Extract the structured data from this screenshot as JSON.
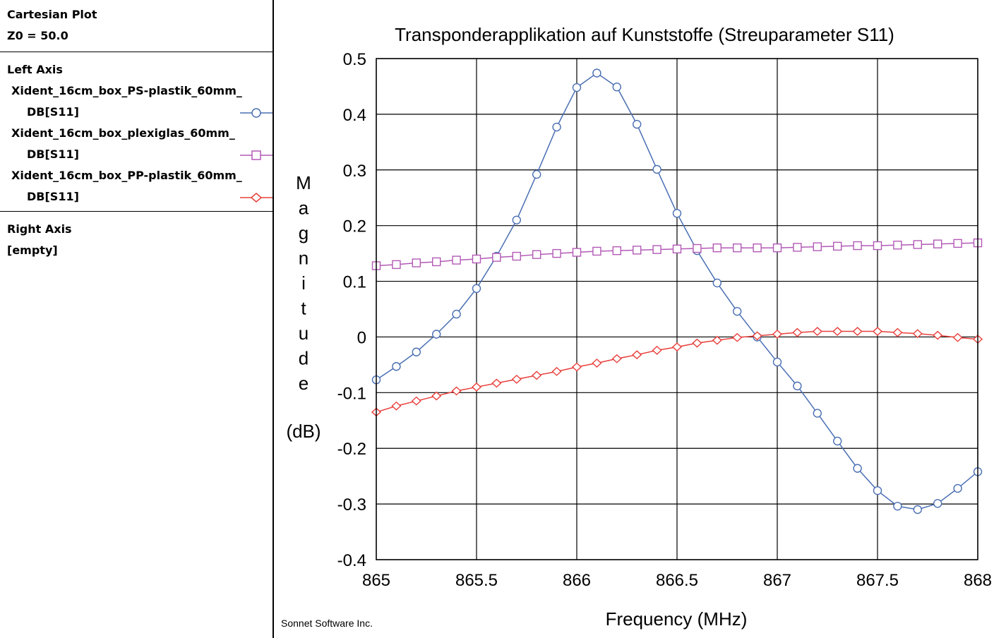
{
  "sidebar": {
    "plot_type": "Cartesian Plot",
    "z0": "Z0 = 50.0",
    "left_axis_heading": "Left Axis",
    "traces": [
      {
        "name": "Xident_16cm_box_PS-plastik_60mm_",
        "measurement": "DB[S11]",
        "marker": "circle-marker-icon",
        "color": "#4a6fb3"
      },
      {
        "name": "Xident_16cm_box_plexiglas_60mm_",
        "measurement": "DB[S11]",
        "marker": "square-marker-icon",
        "color": "#b25ab5"
      },
      {
        "name": "Xident_16cm_box_PP-plastik_60mm_",
        "measurement": "DB[S11]",
        "marker": "diamond-marker-icon",
        "color": "#e8403c"
      }
    ],
    "right_axis_heading": "Right Axis",
    "right_axis_value": "[empty]"
  },
  "credit": "Sonnet Software Inc.",
  "chart_data": {
    "type": "line",
    "title": "Transponderapplikation auf Kunststoffe (Streuparameter S11)",
    "xlabel": "Frequency (MHz)",
    "ylabel_letters": [
      "M",
      "a",
      "g",
      "n",
      "i",
      "t",
      "u",
      "d",
      "e"
    ],
    "ylabel_unit": "(dB)",
    "xlim": [
      865,
      868
    ],
    "ylim": [
      -0.4,
      0.5
    ],
    "xticks": [
      865,
      865.5,
      866,
      866.5,
      867,
      867.5,
      868
    ],
    "xtick_labels": [
      "865",
      "865.5",
      "866",
      "866.5",
      "867",
      "867.5",
      "868"
    ],
    "yticks": [
      0.5,
      0.4,
      0.3,
      0.2,
      0.1,
      0,
      -0.1,
      -0.2,
      -0.3,
      -0.4
    ],
    "ytick_labels": [
      "0.5",
      "0.4",
      "0.3",
      "0.2",
      "0.1",
      "0",
      "-0.1",
      "-0.2",
      "-0.3",
      "-0.4"
    ],
    "grid": true,
    "x": [
      865.0,
      865.1,
      865.2,
      865.3,
      865.4,
      865.5,
      865.6,
      865.7,
      865.8,
      865.9,
      866.0,
      866.1,
      866.2,
      866.3,
      866.4,
      866.5,
      866.6,
      866.7,
      866.8,
      866.9,
      867.0,
      867.1,
      867.2,
      867.3,
      867.4,
      867.5,
      867.6,
      867.7,
      867.8,
      867.9,
      868.0
    ],
    "series": [
      {
        "name": "Xident_16cm_box_PS-plastik_60mm_ DB[S11]",
        "marker": "circle",
        "color": "#4a6fb3",
        "values": [
          -0.077,
          -0.053,
          -0.027,
          0.005,
          0.041,
          0.087,
          0.145,
          0.21,
          0.292,
          0.377,
          0.448,
          0.474,
          0.449,
          0.382,
          0.301,
          0.222,
          0.155,
          0.097,
          0.046,
          0.0,
          -0.045,
          -0.088,
          -0.137,
          -0.187,
          -0.236,
          -0.276,
          -0.304,
          -0.31,
          -0.299,
          -0.272,
          -0.242
        ]
      },
      {
        "name": "Xident_16cm_box_plexiglas_60mm_ DB[S11]",
        "marker": "square",
        "color": "#b25ab5",
        "values": [
          0.128,
          0.13,
          0.133,
          0.135,
          0.138,
          0.14,
          0.143,
          0.145,
          0.148,
          0.15,
          0.152,
          0.154,
          0.155,
          0.156,
          0.157,
          0.158,
          0.159,
          0.16,
          0.16,
          0.16,
          0.16,
          0.161,
          0.162,
          0.163,
          0.164,
          0.164,
          0.165,
          0.166,
          0.167,
          0.168,
          0.169
        ]
      },
      {
        "name": "Xident_16cm_box_PP-plastik_60mm_ DB[S11]",
        "marker": "diamond",
        "color": "#e8403c",
        "values": [
          -0.135,
          -0.124,
          -0.115,
          -0.106,
          -0.097,
          -0.09,
          -0.083,
          -0.076,
          -0.069,
          -0.062,
          -0.054,
          -0.047,
          -0.039,
          -0.032,
          -0.024,
          -0.018,
          -0.011,
          -0.006,
          -0.001,
          0.002,
          0.005,
          0.008,
          0.01,
          0.01,
          0.01,
          0.01,
          0.008,
          0.006,
          0.003,
          -0.001,
          -0.004
        ]
      }
    ]
  }
}
